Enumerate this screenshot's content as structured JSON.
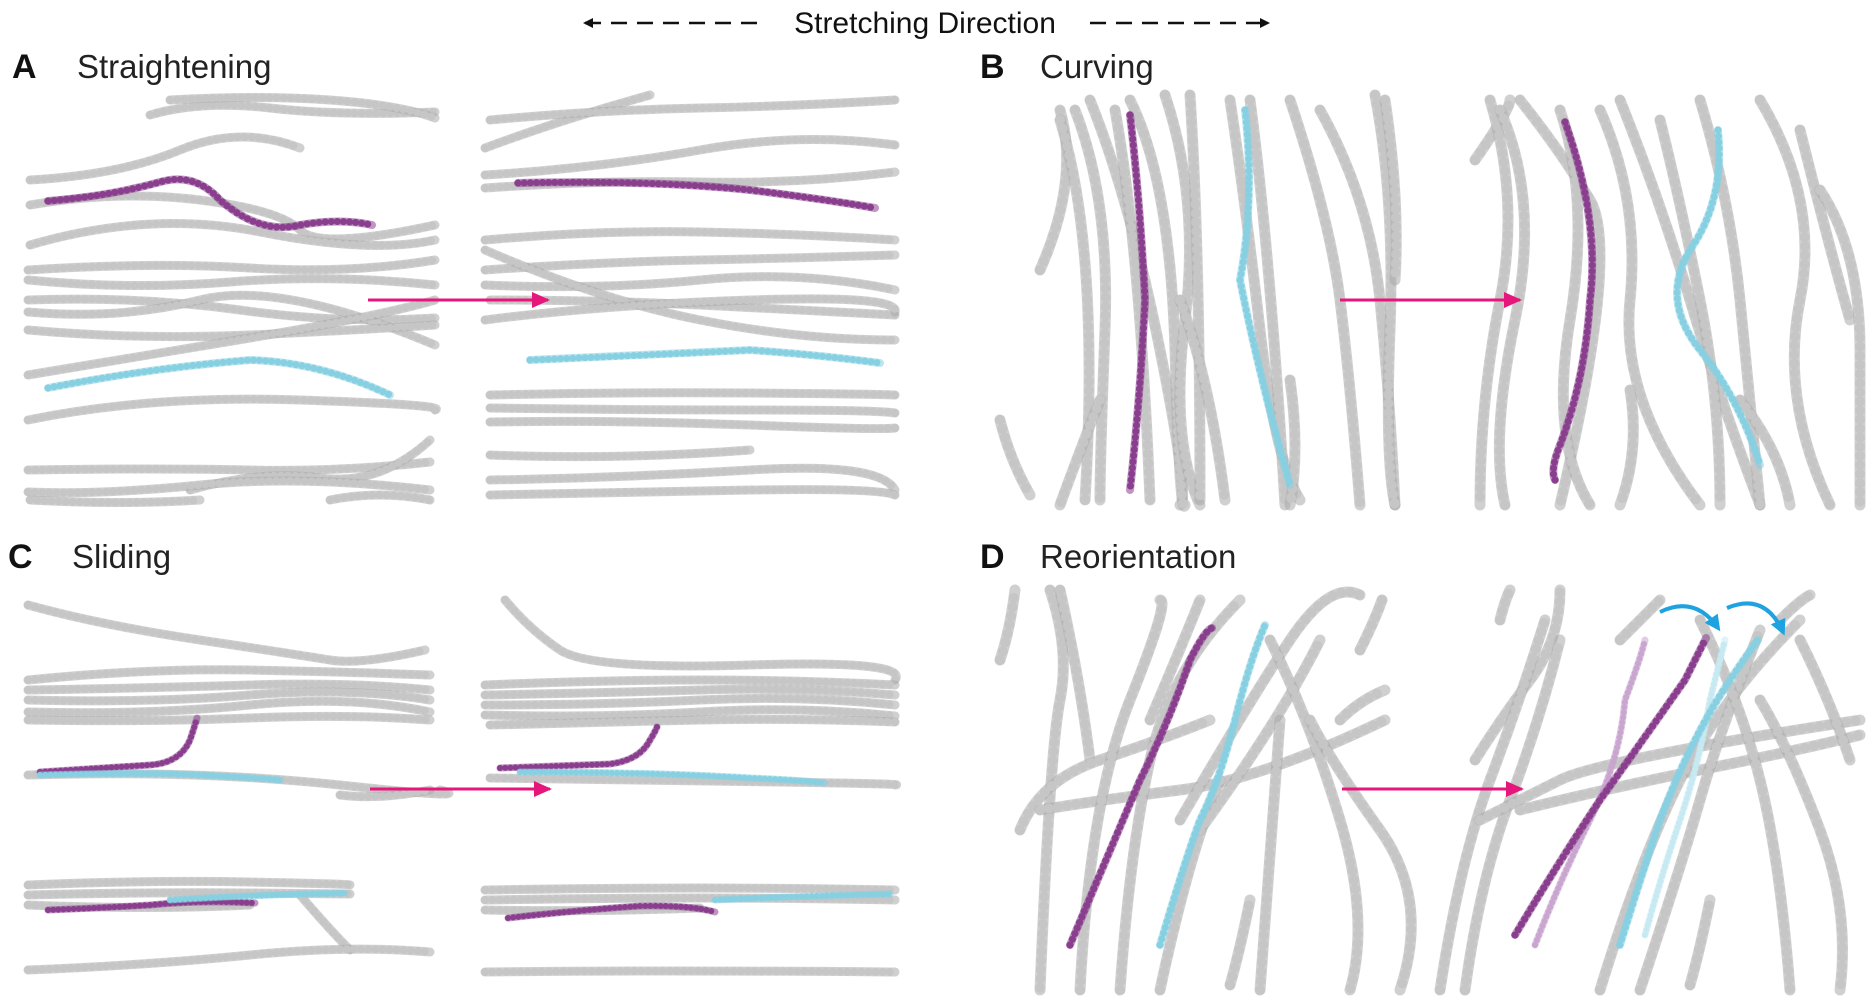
{
  "header": {
    "label": "Stretching Direction"
  },
  "panels": [
    {
      "letter": "A",
      "title": "Straightening"
    },
    {
      "letter": "B",
      "title": "Curving"
    },
    {
      "letter": "C",
      "title": "Sliding"
    },
    {
      "letter": "D",
      "title": "Reorientation"
    }
  ],
  "colors": {
    "fiber": "#c6c6c6",
    "fiber_edge": "#aaaaaa",
    "purple": "#8a3f8e",
    "light_purple": "#c9a6cf",
    "cyan": "#86d0e2",
    "light_cyan": "#c7e9f2",
    "arrow": "#e5177b",
    "rotate_arrow": "#1ea3e0",
    "text": "#111111"
  },
  "icons": {
    "transition_arrow": "right-arrow-icon",
    "rotation_arrow": "curved-arrow-icon",
    "direction_arrow": "double-arrow-icon"
  }
}
